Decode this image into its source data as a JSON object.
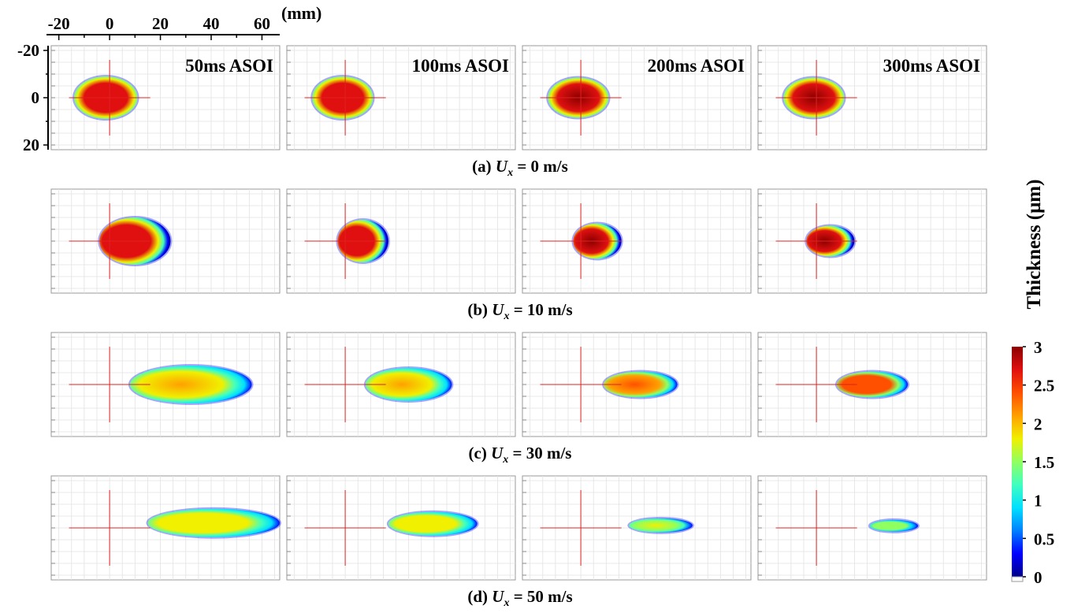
{
  "figure": {
    "unit_label": "(mm)",
    "top_axis_ticks": [
      "-20",
      "0",
      "20",
      "40",
      "60"
    ],
    "left_axis_ticks": [
      "-20",
      "0",
      "20"
    ],
    "time_labels": [
      "50ms ASOI",
      "100ms ASOI",
      "200ms ASOI",
      "300ms ASOI"
    ],
    "row_labels": [
      {
        "prefix": "(a) ",
        "var": "U",
        "sub": "x",
        "suffix": " = 0 m/s"
      },
      {
        "prefix": "(b) ",
        "var": "U",
        "sub": "x",
        "suffix": " = 10 m/s"
      },
      {
        "prefix": "(c) ",
        "var": "U",
        "sub": "x",
        "suffix": " = 30 m/s"
      },
      {
        "prefix": "(d) ",
        "var": "U",
        "sub": "x",
        "suffix": " = 50 m/s"
      }
    ],
    "colorbar_title": "Thickness (μm)",
    "colorbar_ticks": [
      "3",
      "2.5",
      "2",
      "1.5",
      "1",
      "0.5",
      "0"
    ]
  },
  "chart_data": {
    "type": "heatmap",
    "description_units": "spray footprint extents in mm (x downstream, y lateral), thickness in μm",
    "x_range_mm": [
      -23,
      67
    ],
    "y_range_mm": [
      -22,
      22
    ],
    "colorbar_range_um": [
      0,
      3
    ],
    "colormap": [
      "#00008b",
      "#0000ff",
      "#0080ff",
      "#00e0ff",
      "#40ffc0",
      "#90ff60",
      "#f0f000",
      "#ffa000",
      "#ff5000",
      "#e01010",
      "#8b0000"
    ],
    "columns": [
      "50ms ASOI",
      "100ms ASOI",
      "200ms ASOI",
      "300ms ASOI"
    ],
    "rows": [
      {
        "crossflow_ms": 0,
        "footprints": [
          {
            "x_min": -14,
            "x_max": 11,
            "y_half": 9,
            "core_thickness_um": 2.8
          },
          {
            "x_min": -13,
            "x_max": 11,
            "y_half": 9,
            "core_thickness_um": 2.8
          },
          {
            "x_min": -13,
            "x_max": 11,
            "y_half": 8.5,
            "core_thickness_um": 2.9
          },
          {
            "x_min": -13,
            "x_max": 11,
            "y_half": 8.5,
            "core_thickness_um": 2.9
          }
        ]
      },
      {
        "crossflow_ms": 10,
        "footprints": [
          {
            "x_min": -4,
            "x_max": 24,
            "y_half": 10,
            "core_thickness_um": 2.7
          },
          {
            "x_min": -3,
            "x_max": 17,
            "y_half": 9,
            "core_thickness_um": 2.8
          },
          {
            "x_min": -3,
            "x_max": 16,
            "y_half": 7.5,
            "core_thickness_um": 2.9
          },
          {
            "x_min": -4,
            "x_max": 15,
            "y_half": 6.5,
            "core_thickness_um": 2.9
          }
        ]
      },
      {
        "crossflow_ms": 30,
        "footprints": [
          {
            "x_min": 8,
            "x_max": 56,
            "y_half": 8,
            "core_thickness_um": 2.0
          },
          {
            "x_min": 8,
            "x_max": 42,
            "y_half": 7,
            "core_thickness_um": 2.0
          },
          {
            "x_min": 9,
            "x_max": 38,
            "y_half": 5.5,
            "core_thickness_um": 2.3
          },
          {
            "x_min": 8,
            "x_max": 36,
            "y_half": 5.5,
            "core_thickness_um": 2.4
          }
        ]
      },
      {
        "crossflow_ms": 50,
        "footprints": [
          {
            "x_min": 15,
            "x_max": 67,
            "y_half": 6,
            "core_thickness_um": 1.9
          },
          {
            "x_min": 17,
            "x_max": 52,
            "y_half": 5,
            "core_thickness_um": 1.8
          },
          {
            "x_min": 19,
            "x_max": 44,
            "y_half": 3,
            "core_thickness_um": 1.7
          },
          {
            "x_min": 21,
            "x_max": 40,
            "y_half": 2.5,
            "core_thickness_um": 1.6
          }
        ]
      }
    ]
  }
}
